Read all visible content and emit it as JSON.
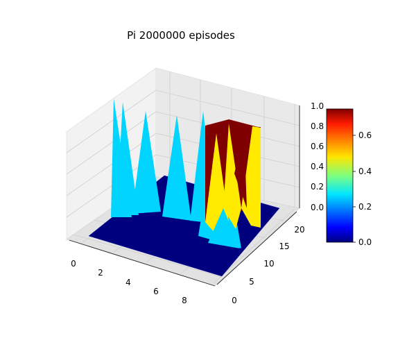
{
  "chart_data": {
    "type": "surface3d",
    "title": "Pi 2000000 episodes",
    "xlabel": "",
    "ylabel": "",
    "zlabel": "",
    "x_ticks": [
      0,
      2,
      4,
      6,
      8
    ],
    "y_ticks": [
      0,
      5,
      10,
      15,
      20
    ],
    "z_ticks": [
      "0.0",
      "0.2",
      "0.4",
      "0.6",
      "0.8",
      "1.0"
    ],
    "xlim": [
      0,
      9
    ],
    "ylim": [
      0,
      21
    ],
    "zlim": [
      0,
      1
    ],
    "colormap": "jet",
    "colorbar": {
      "range": [
        0,
        0.75
      ],
      "ticks": [
        "0.0",
        "0.2",
        "0.4",
        "0.6"
      ]
    },
    "peaks": [
      {
        "x": 1,
        "y": 18,
        "z": 1.0
      },
      {
        "x": 1,
        "y": 20,
        "z": 1.0
      },
      {
        "x": 3,
        "y": 21,
        "z": 0.9
      },
      {
        "x": 5,
        "y": 21,
        "z": 0.85
      },
      {
        "x": 7,
        "y": 21,
        "z": 0.9
      },
      {
        "x": 7,
        "y": 17,
        "z": 0.55
      },
      {
        "x": 8,
        "y": 20,
        "z": 0.5
      },
      {
        "x": 8,
        "y": 21,
        "z": 0.75
      },
      {
        "x": 9,
        "y": 15,
        "z": 0.75
      }
    ],
    "plateaus": [
      {
        "x_range": [
          8,
          9
        ],
        "y_range": [
          15,
          21
        ],
        "z": 0.75
      }
    ],
    "colors": {
      "base": "#00007f",
      "peak": "#00d4ff",
      "high": "#7f0000",
      "mid": "#ffea00"
    }
  }
}
